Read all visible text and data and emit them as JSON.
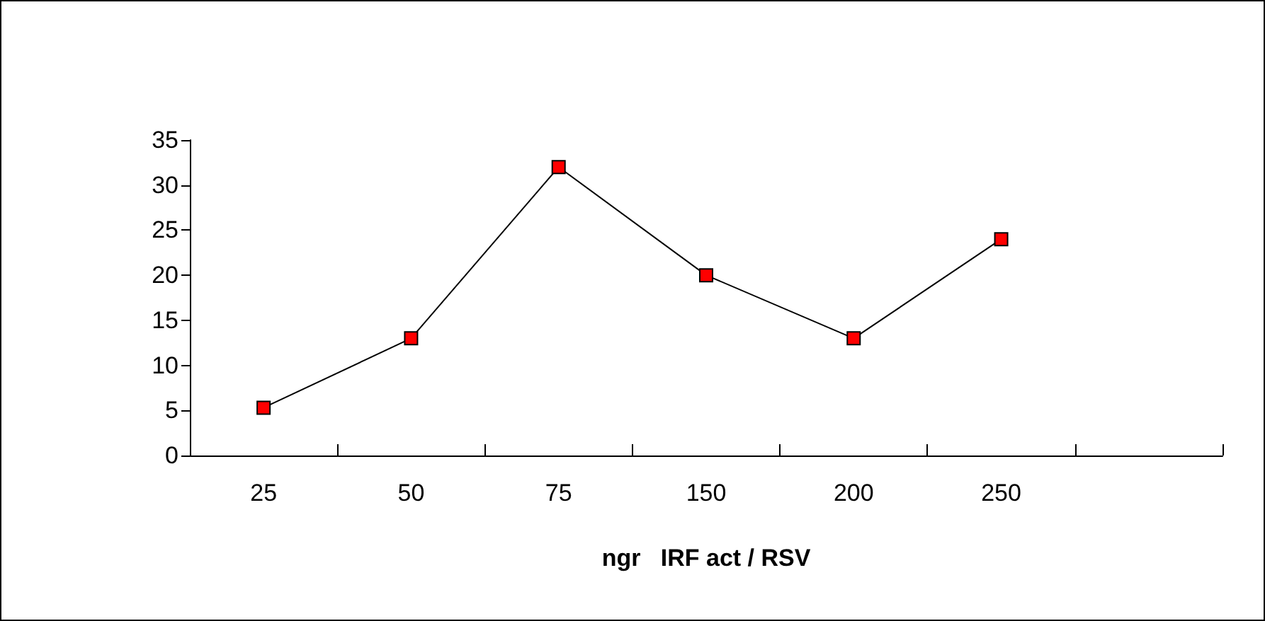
{
  "chart_data": {
    "type": "line",
    "xlabel": "ngr   IRF act / RSV",
    "categories": [
      "25",
      "50",
      "75",
      "150",
      "200",
      "250",
      null
    ],
    "series": [
      {
        "color": "#ff0000",
        "values": [
          5.3,
          13,
          32,
          20,
          13,
          24,
          null
        ]
      }
    ],
    "ylim": [
      0,
      35
    ],
    "yticks": [
      0,
      5,
      10,
      15,
      20,
      25,
      30,
      35
    ],
    "grid": false,
    "marker": "square",
    "line_style": "solid"
  }
}
